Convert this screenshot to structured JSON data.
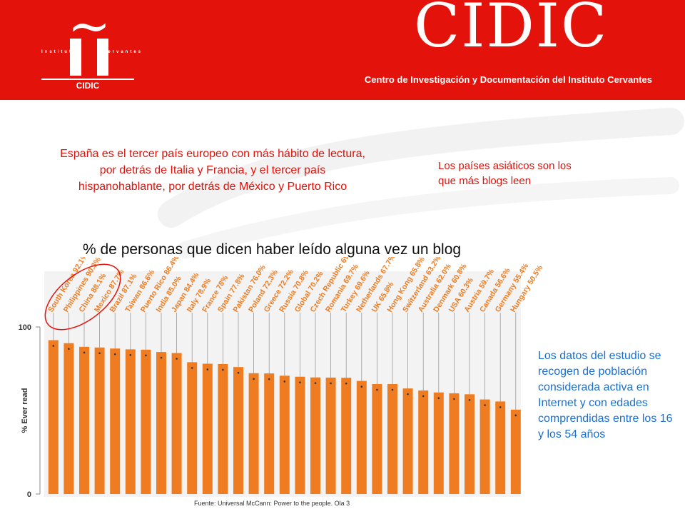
{
  "header": {
    "logo_tilde": "~",
    "logo_instituto": "Instituto",
    "logo_cervantes": "Cervantes",
    "logo_caption": "CIDIC",
    "brand": "CIDIC",
    "brand_subtitle": "Centro de Investigación y Documentación del Instituto Cervantes",
    "brand_color": "#e3120b"
  },
  "notes": {
    "left": "España es el tercer país europeo con más hábito de lectura, por detrás de Italia y Francia, y el tercer país hispanohablante, por detrás de México y Puerto Rico",
    "asia": "Los países asiáticos son los que más blogs leen",
    "data": "Los datos del estudio se recogen de población considerada activa en Internet y con edades comprendidas entre los 16 y los 54 años",
    "source": "Fuente: Universal McCann: Power to the people. Ola 3",
    "note_red": "#e3120b",
    "note_blue": "#1a6fd1"
  },
  "chart_title": "% de personas que dicen haber leído alguna vez un blog",
  "chart_data": {
    "type": "bar",
    "title": "% de personas que dicen haber leído alguna vez un blog",
    "ylabel": "% Ever read",
    "ylim": [
      0,
      100
    ],
    "yticks": [
      "100",
      "0"
    ],
    "grid": false,
    "bar_color": "#f07c21",
    "label_color": "#f07c21",
    "highlight": "circle around the first three countries (South Korea, Philippines, China)",
    "categories": [
      "South Korea",
      "Philippines",
      "China",
      "Mexico",
      "Brazil",
      "Taiwan",
      "Puerto Rico",
      "India",
      "Japan",
      "Italy",
      "France",
      "Spain",
      "Pakistan",
      "Poland",
      "Greece",
      "Russia",
      "Global",
      "Czech Republic",
      "Romania",
      "Turkey",
      "Netherlands",
      "UK",
      "Hong Kong",
      "Switzerland",
      "Australia",
      "Denmark",
      "USA",
      "Austria",
      "Canada",
      "Germany",
      "Hungary"
    ],
    "values": [
      92.1,
      90.3,
      88.1,
      87.7,
      87.1,
      86.6,
      86.4,
      85.0,
      84.4,
      78.9,
      78.0,
      77.8,
      76.0,
      72.3,
      72.2,
      70.8,
      70.2,
      69.8,
      69.7,
      69.6,
      67.7,
      65.8,
      65.8,
      63.2,
      62.0,
      60.8,
      60.3,
      59.7,
      56.6,
      55.4,
      50.5
    ],
    "labels": [
      "South Korea 92.1%",
      "Philippines 90.3%",
      "China 88.1%",
      "Mexico 87.7%",
      "Brazil 87.1%",
      "Taiwan 86.6%",
      "Puerto Rico 86.4%",
      "India 85.0%",
      "Japan 84.4%",
      "Italy 78.9%",
      "France 78%",
      "Spain 77.8%",
      "Pakistan 76.0%",
      "Poland 72.3%",
      "Greece 72.2%",
      "Russia 70.8%",
      "Global 70.2%",
      "Czech Republic 69.8%",
      "Romania 69.7%",
      "Turkey 69.6%",
      "Netherlands 67.7%",
      "UK 65.8%",
      "Hong Kong 65.8%",
      "Switzerland 63.2%",
      "Australia 62.0%",
      "Denmark 60.8%",
      "USA 60.3%",
      "Austria 59.7%",
      "Canada 56.6%",
      "Germany 55.4%",
      "Hungary 50.5%"
    ]
  }
}
